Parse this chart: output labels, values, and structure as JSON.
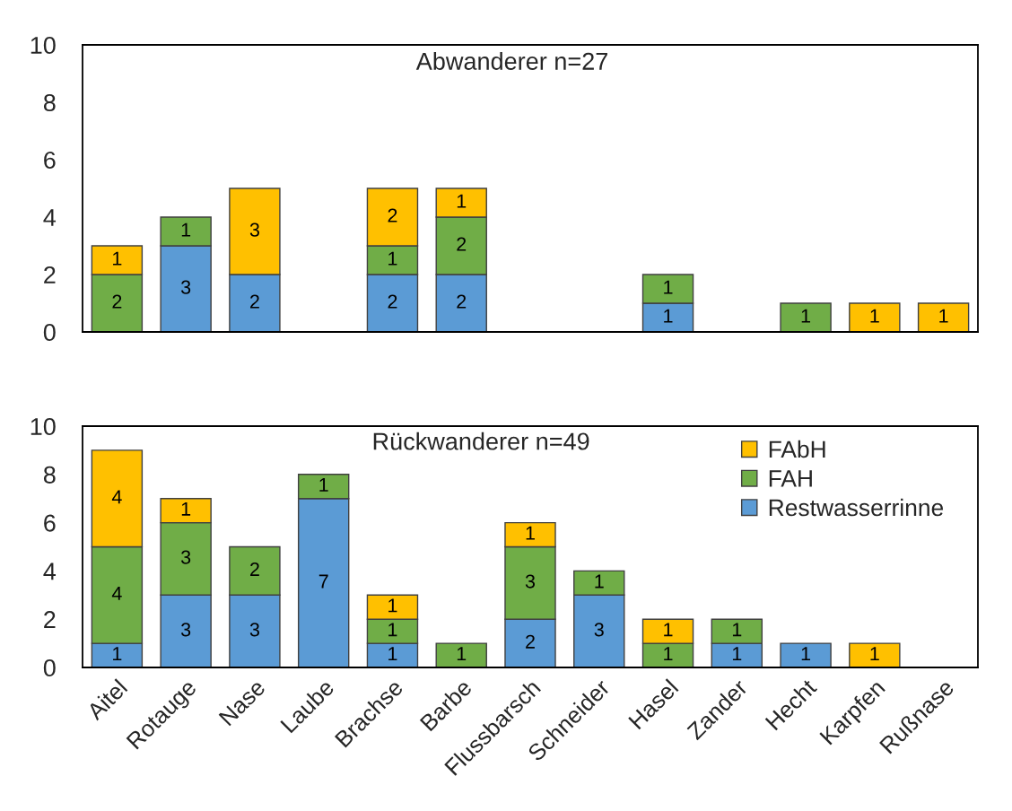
{
  "chart_data": [
    {
      "type": "bar",
      "title": "Abwanderer n=27",
      "stacked": true,
      "data_labels": true,
      "tick_labels": "y",
      "grid": false,
      "ylim": [
        0,
        10
      ],
      "yticks": [
        0,
        2,
        4,
        6,
        8,
        10
      ],
      "categories": [
        null,
        null,
        null,
        null,
        null,
        null,
        null,
        null,
        null,
        null,
        null,
        null,
        null
      ],
      "series": [
        {
          "color": "#5b9bd5",
          "values": [
            null,
            3,
            2,
            null,
            2,
            2,
            null,
            null,
            1,
            null,
            null,
            null,
            null
          ]
        },
        {
          "color": "#70ad47",
          "values": [
            2,
            1,
            null,
            null,
            1,
            2,
            null,
            null,
            1,
            null,
            1,
            null,
            null
          ]
        },
        {
          "color": "#ffc000",
          "values": [
            1,
            null,
            3,
            null,
            2,
            1,
            null,
            null,
            null,
            null,
            null,
            1,
            1
          ]
        }
      ]
    },
    {
      "type": "bar",
      "title": "Rückwanderer n=49",
      "stacked": true,
      "data_labels": true,
      "grid": false,
      "legend": "top right",
      "ylim": [
        0,
        10
      ],
      "yticks": [
        0,
        2,
        4,
        6,
        8,
        10
      ],
      "categories": [
        "Aitel",
        "Rotauge",
        "Nase",
        "Laube",
        "Brachse",
        "Barbe",
        "Flussbarsch",
        "Schneider",
        "Hasel",
        "Zander",
        "Hecht",
        "Karpfen",
        "Rußnase"
      ],
      "series": [
        {
          "name": "Restwasserrinne",
          "color": "#5b9bd5",
          "values": [
            1,
            3,
            3,
            7,
            1,
            null,
            2,
            3,
            null,
            1,
            1,
            null,
            null
          ]
        },
        {
          "name": "FAH",
          "color": "#70ad47",
          "values": [
            4,
            3,
            2,
            1,
            1,
            1,
            3,
            1,
            1,
            1,
            null,
            null,
            null
          ]
        },
        {
          "name": "FAbH",
          "color": "#ffc000",
          "values": [
            4,
            1,
            null,
            null,
            1,
            null,
            1,
            null,
            1,
            null,
            null,
            1,
            null
          ]
        }
      ]
    }
  ]
}
